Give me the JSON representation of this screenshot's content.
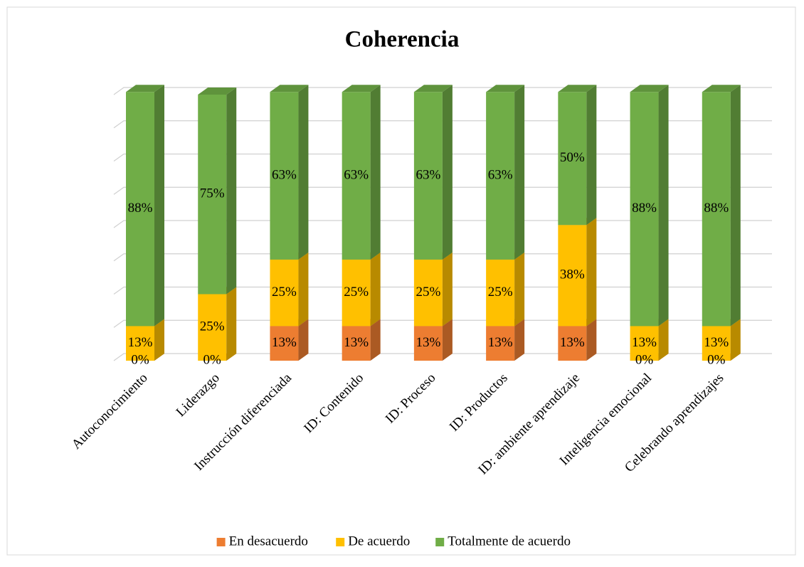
{
  "chart_data": {
    "type": "bar3d_stacked",
    "title": "Coherencia",
    "categories": [
      "Autoconocimiento",
      "Liderazgo",
      "Instrucción diferenciada",
      "ID: Contenido",
      "ID: Proceso",
      "ID: Productos",
      "ID: ambiente aprendizaje",
      "Inteligencia emocional",
      "Celebrando aprendizajes"
    ],
    "series": [
      {
        "name": "En desacuerdo",
        "color": "#ED7D31",
        "values": [
          0,
          0,
          13,
          13,
          13,
          13,
          13,
          0,
          0
        ],
        "value_labels": [
          "0%",
          "0%",
          "13%",
          "13%",
          "13%",
          "13%",
          "13%",
          "0%",
          "0%"
        ]
      },
      {
        "name": "De acuerdo",
        "color": "#FFC000",
        "values": [
          13,
          25,
          25,
          25,
          25,
          25,
          38,
          13,
          13
        ],
        "value_labels": [
          "13%",
          "25%",
          "25%",
          "25%",
          "25%",
          "25%",
          "38%",
          "13%",
          "13%"
        ]
      },
      {
        "name": "Totalmente de acuerdo",
        "color": "#70AD47",
        "values": [
          88,
          75,
          63,
          63,
          63,
          63,
          50,
          88,
          88
        ],
        "value_labels": [
          "88%",
          "75%",
          "63%",
          "63%",
          "63%",
          "63%",
          "50%",
          "88%",
          "88%"
        ]
      }
    ],
    "ylim": [
      0,
      100
    ],
    "yticks": [
      0,
      12.5,
      25,
      37.5,
      50,
      62.5,
      75,
      87.5,
      100
    ],
    "grid": true,
    "legend": "bottom"
  }
}
